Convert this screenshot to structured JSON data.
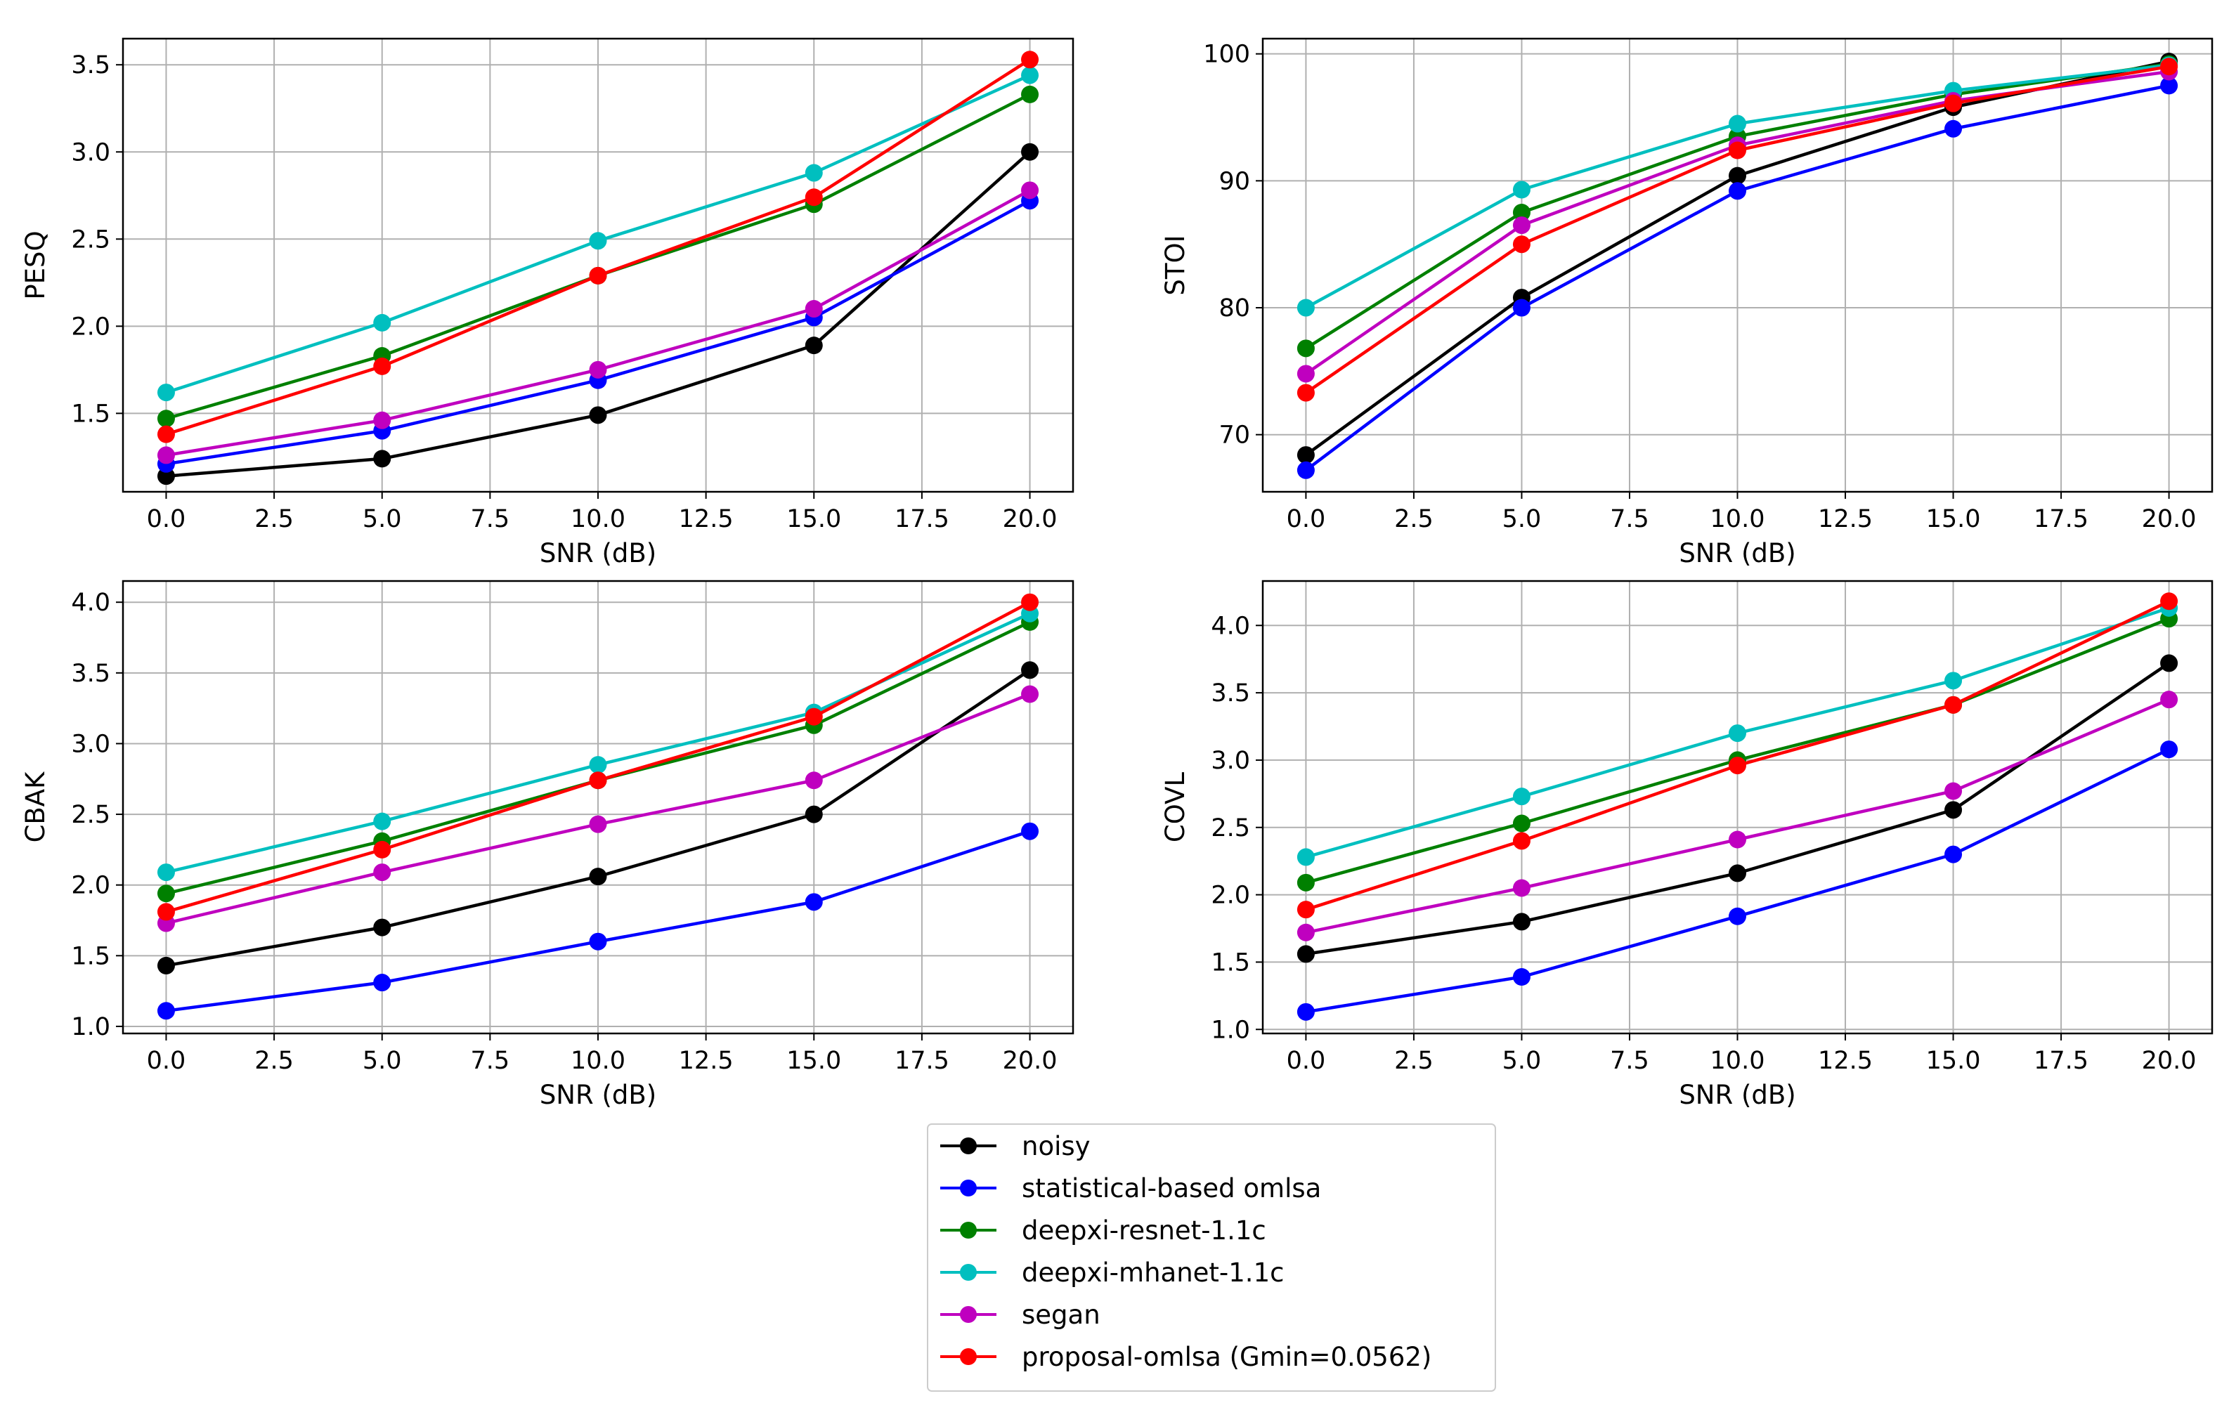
{
  "chart_data": [
    {
      "type": "line",
      "title": "",
      "xlabel": "SNR (dB)",
      "ylabel": "PESQ",
      "x": [
        0,
        5,
        10,
        15,
        20
      ],
      "xlim": [
        -1,
        21
      ],
      "ylim": [
        1.05,
        3.65
      ],
      "xticks": [
        0.0,
        2.5,
        5.0,
        7.5,
        10.0,
        12.5,
        15.0,
        17.5,
        20.0
      ],
      "xtick_labels": [
        "0.0",
        "2.5",
        "5.0",
        "7.5",
        "10.0",
        "12.5",
        "15.0",
        "17.5",
        "20.0"
      ],
      "yticks": [
        1.5,
        2.0,
        2.5,
        3.0,
        3.5
      ],
      "ytick_labels": [
        "1.5",
        "2.0",
        "2.5",
        "3.0",
        "3.5"
      ],
      "grid": true,
      "series": [
        {
          "name": "noisy",
          "color": "#000000",
          "values": [
            1.14,
            1.24,
            1.49,
            1.89,
            3.0
          ]
        },
        {
          "name": "statistical-based omlsa",
          "color": "#0000ff",
          "values": [
            1.21,
            1.4,
            1.69,
            2.05,
            2.72
          ]
        },
        {
          "name": "deepxi-resnet-1.1c",
          "color": "#008000",
          "values": [
            1.47,
            1.83,
            2.29,
            2.7,
            3.33
          ]
        },
        {
          "name": "deepxi-mhanet-1.1c",
          "color": "#00bfbf",
          "values": [
            1.62,
            2.02,
            2.49,
            2.88,
            3.44
          ]
        },
        {
          "name": "segan",
          "color": "#bf00bf",
          "values": [
            1.26,
            1.46,
            1.75,
            2.1,
            2.78
          ]
        },
        {
          "name": "proposal-omlsa (Gmin=0.0562)",
          "color": "#ff0000",
          "values": [
            1.38,
            1.77,
            2.29,
            2.74,
            3.53
          ]
        }
      ]
    },
    {
      "type": "line",
      "title": "",
      "xlabel": "SNR (dB)",
      "ylabel": "STOI",
      "x": [
        0,
        5,
        10,
        15,
        20
      ],
      "xlim": [
        -1,
        21
      ],
      "ylim": [
        65.5,
        101.2
      ],
      "xticks": [
        0.0,
        2.5,
        5.0,
        7.5,
        10.0,
        12.5,
        15.0,
        17.5,
        20.0
      ],
      "xtick_labels": [
        "0.0",
        "2.5",
        "5.0",
        "7.5",
        "10.0",
        "12.5",
        "15.0",
        "17.5",
        "20.0"
      ],
      "yticks": [
        70,
        80,
        90,
        100
      ],
      "ytick_labels": [
        "70",
        "80",
        "90",
        "100"
      ],
      "grid": true,
      "series": [
        {
          "name": "noisy",
          "color": "#000000",
          "values": [
            68.4,
            80.8,
            90.4,
            95.8,
            99.4
          ]
        },
        {
          "name": "statistical-based omlsa",
          "color": "#0000ff",
          "values": [
            67.2,
            80.0,
            89.2,
            94.1,
            97.5
          ]
        },
        {
          "name": "deepxi-resnet-1.1c",
          "color": "#008000",
          "values": [
            76.8,
            87.5,
            93.5,
            96.8,
            99.2
          ]
        },
        {
          "name": "deepxi-mhanet-1.1c",
          "color": "#00bfbf",
          "values": [
            80.0,
            89.3,
            94.5,
            97.1,
            99.1
          ]
        },
        {
          "name": "segan",
          "color": "#bf00bf",
          "values": [
            74.8,
            86.5,
            92.8,
            96.3,
            98.6
          ]
        },
        {
          "name": "proposal-omlsa (Gmin=0.0562)",
          "color": "#ff0000",
          "values": [
            73.3,
            85.0,
            92.4,
            96.1,
            99.0
          ]
        }
      ]
    },
    {
      "type": "line",
      "title": "",
      "xlabel": "SNR (dB)",
      "ylabel": "CBAK",
      "x": [
        0,
        5,
        10,
        15,
        20
      ],
      "xlim": [
        -1,
        21
      ],
      "ylim": [
        0.95,
        4.15
      ],
      "xticks": [
        0.0,
        2.5,
        5.0,
        7.5,
        10.0,
        12.5,
        15.0,
        17.5,
        20.0
      ],
      "xtick_labels": [
        "0.0",
        "2.5",
        "5.0",
        "7.5",
        "10.0",
        "12.5",
        "15.0",
        "17.5",
        "20.0"
      ],
      "yticks": [
        1.0,
        1.5,
        2.0,
        2.5,
        3.0,
        3.5,
        4.0
      ],
      "ytick_labels": [
        "1.0",
        "1.5",
        "2.0",
        "2.5",
        "3.0",
        "3.5",
        "4.0"
      ],
      "grid": true,
      "series": [
        {
          "name": "noisy",
          "color": "#000000",
          "values": [
            1.43,
            1.7,
            2.06,
            2.5,
            3.52
          ]
        },
        {
          "name": "statistical-based omlsa",
          "color": "#0000ff",
          "values": [
            1.11,
            1.31,
            1.6,
            1.88,
            2.38
          ]
        },
        {
          "name": "deepxi-resnet-1.1c",
          "color": "#008000",
          "values": [
            1.94,
            2.31,
            2.74,
            3.13,
            3.86
          ]
        },
        {
          "name": "deepxi-mhanet-1.1c",
          "color": "#00bfbf",
          "values": [
            2.09,
            2.45,
            2.85,
            3.22,
            3.92
          ]
        },
        {
          "name": "segan",
          "color": "#bf00bf",
          "values": [
            1.73,
            2.09,
            2.43,
            2.74,
            3.35
          ]
        },
        {
          "name": "proposal-omlsa (Gmin=0.0562)",
          "color": "#ff0000",
          "values": [
            1.81,
            2.25,
            2.74,
            3.19,
            4.0
          ]
        }
      ]
    },
    {
      "type": "line",
      "title": "",
      "xlabel": "SNR (dB)",
      "ylabel": "COVL",
      "x": [
        0,
        5,
        10,
        15,
        20
      ],
      "xlim": [
        -1,
        21
      ],
      "ylim": [
        0.97,
        4.33
      ],
      "xticks": [
        0.0,
        2.5,
        5.0,
        7.5,
        10.0,
        12.5,
        15.0,
        17.5,
        20.0
      ],
      "xtick_labels": [
        "0.0",
        "2.5",
        "5.0",
        "7.5",
        "10.0",
        "12.5",
        "15.0",
        "17.5",
        "20.0"
      ],
      "yticks": [
        1.0,
        1.5,
        2.0,
        2.5,
        3.0,
        3.5,
        4.0
      ],
      "ytick_labels": [
        "1.0",
        "1.5",
        "2.0",
        "2.5",
        "3.0",
        "3.5",
        "4.0"
      ],
      "grid": true,
      "series": [
        {
          "name": "noisy",
          "color": "#000000",
          "values": [
            1.56,
            1.8,
            2.16,
            2.63,
            3.72
          ]
        },
        {
          "name": "statistical-based omlsa",
          "color": "#0000ff",
          "values": [
            1.13,
            1.39,
            1.84,
            2.3,
            3.08
          ]
        },
        {
          "name": "deepxi-resnet-1.1c",
          "color": "#008000",
          "values": [
            2.09,
            2.53,
            3.0,
            3.41,
            4.05
          ]
        },
        {
          "name": "deepxi-mhanet-1.1c",
          "color": "#00bfbf",
          "values": [
            2.28,
            2.73,
            3.2,
            3.59,
            4.13
          ]
        },
        {
          "name": "segan",
          "color": "#bf00bf",
          "values": [
            1.72,
            2.05,
            2.41,
            2.77,
            3.45
          ]
        },
        {
          "name": "proposal-omlsa (Gmin=0.0562)",
          "color": "#ff0000",
          "values": [
            1.89,
            2.4,
            2.96,
            3.41,
            4.18
          ]
        }
      ]
    }
  ],
  "legend": {
    "position": "bottom-center",
    "entries": [
      {
        "label": "noisy",
        "color": "#000000"
      },
      {
        "label": "statistical-based omlsa",
        "color": "#0000ff"
      },
      {
        "label": "deepxi-resnet-1.1c",
        "color": "#008000"
      },
      {
        "label": "deepxi-mhanet-1.1c",
        "color": "#00bfbf"
      },
      {
        "label": "segan",
        "color": "#bf00bf"
      },
      {
        "label": "proposal-omlsa (Gmin=0.0562)",
        "color": "#ff0000"
      }
    ]
  }
}
